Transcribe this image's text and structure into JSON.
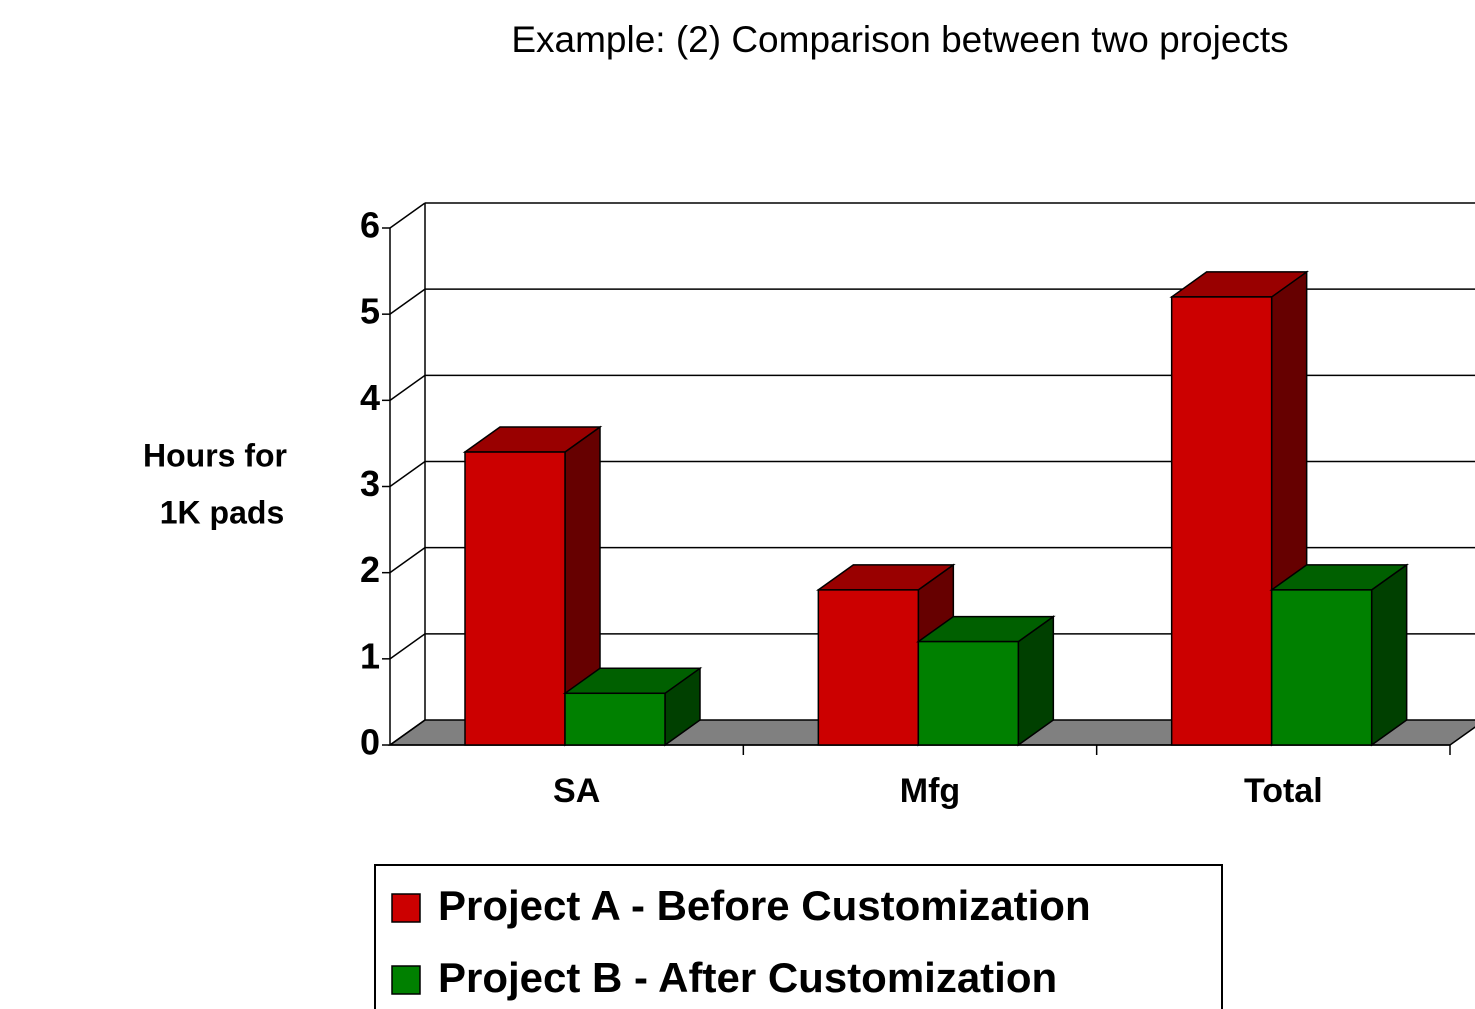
{
  "chart_data": {
    "type": "bar3d",
    "title": "Example: (2) Comparison between two projects",
    "y_label": [
      "Hours for",
      "1K pads"
    ],
    "categories": [
      "SA",
      "Mfg",
      "Total"
    ],
    "series": [
      {
        "name": "Project A - Before Customization",
        "color": "#cc0000",
        "values": [
          3.4,
          1.8,
          5.2
        ]
      },
      {
        "name": "Project B - After Customization",
        "color": "#008000",
        "values": [
          0.6,
          1.2,
          1.8
        ]
      }
    ],
    "ylim": [
      0,
      6
    ],
    "yticks": [
      0,
      1,
      2,
      3,
      4,
      5,
      6
    ],
    "grid": true
  }
}
